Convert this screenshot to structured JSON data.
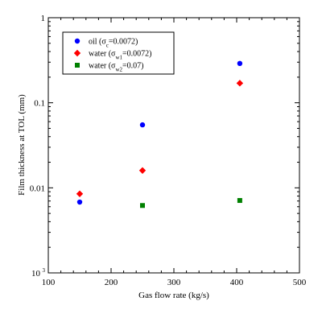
{
  "chart_data": {
    "type": "scatter",
    "xlabel": "Gas flow rate (kg/s)",
    "ylabel": "Film thickness at TOL (mm)",
    "xlim": [
      100,
      500
    ],
    "ylim": [
      0.001,
      1
    ],
    "yscale": "log",
    "x_ticks": [
      "100",
      "200",
      "300",
      "400",
      "500"
    ],
    "y_ticks": [
      {
        "base": "10",
        "exp": "-3",
        "value": 0.001
      },
      {
        "base": "0.01",
        "exp": "",
        "value": 0.01
      },
      {
        "base": "0.1",
        "exp": "",
        "value": 0.1
      },
      {
        "base": "1",
        "exp": "",
        "value": 1
      }
    ],
    "grid": false,
    "legend_position": "top-left",
    "series": [
      {
        "name": "oil (σc=0.0072)",
        "legend_main": "oil (σ",
        "legend_sub": "c",
        "legend_tail": "=0.0072)",
        "marker": "circle",
        "color": "#0000ff",
        "x": [
          150,
          250,
          405
        ],
        "y": [
          0.0068,
          0.055,
          0.29
        ]
      },
      {
        "name": "water (σw1=0.0072)",
        "legend_main": "water (σ",
        "legend_sub": "w1",
        "legend_tail": "=0.0072)",
        "marker": "diamond",
        "color": "#ff0000",
        "x": [
          150,
          250,
          405
        ],
        "y": [
          0.0085,
          0.016,
          0.17
        ]
      },
      {
        "name": "water (σw2=0.07)",
        "legend_main": "water (σ",
        "legend_sub": "w2",
        "legend_tail": "=0.07)",
        "marker": "square",
        "color": "#008000",
        "x": [
          250,
          405
        ],
        "y": [
          0.0062,
          0.0071
        ]
      }
    ]
  }
}
